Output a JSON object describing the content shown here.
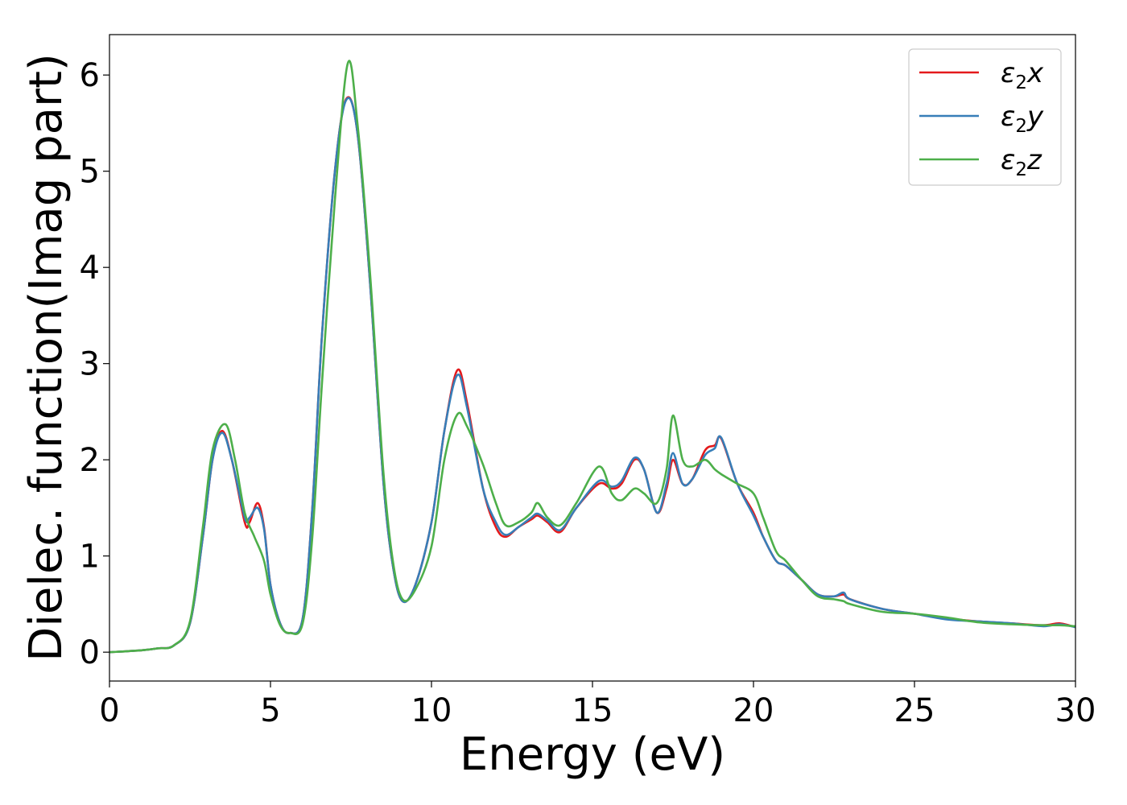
{
  "colors": {
    "x": "#e41a1c",
    "y": "#377eb8",
    "z": "#4daf4a"
  },
  "chart_data": {
    "type": "line",
    "title": "",
    "xlabel": "Energy (eV)",
    "ylabel": "Dielec. function(Imag part)",
    "xlim": [
      0,
      30
    ],
    "ylim": [
      -0.3,
      6.42
    ],
    "xticks": [
      0,
      5,
      10,
      15,
      20,
      25,
      30
    ],
    "xtick_labels": [
      "0",
      "5",
      "10",
      "15",
      "20",
      "25",
      "30"
    ],
    "yticks": [
      0,
      1,
      2,
      3,
      4,
      5,
      6
    ],
    "ytick_labels": [
      "0",
      "1",
      "2",
      "3",
      "4",
      "5",
      "6"
    ],
    "grid": false,
    "legend": "top-right",
    "series": [
      {
        "name": "ε2x",
        "legend_base": "ε",
        "legend_sub": "2",
        "legend_var": "x",
        "color_key": "x",
        "points": [
          [
            0,
            0.0
          ],
          [
            1,
            0.02
          ],
          [
            1.5,
            0.04
          ],
          [
            2,
            0.07
          ],
          [
            2.5,
            0.3
          ],
          [
            2.9,
            1.2
          ],
          [
            3.2,
            2.0
          ],
          [
            3.5,
            2.3
          ],
          [
            3.8,
            2.0
          ],
          [
            4.2,
            1.35
          ],
          [
            4.35,
            1.35
          ],
          [
            4.6,
            1.55
          ],
          [
            4.8,
            1.3
          ],
          [
            5.0,
            0.7
          ],
          [
            5.3,
            0.3
          ],
          [
            5.6,
            0.2
          ],
          [
            6.0,
            0.35
          ],
          [
            6.3,
            1.5
          ],
          [
            6.6,
            3.3
          ],
          [
            7.0,
            5.0
          ],
          [
            7.35,
            5.75
          ],
          [
            7.7,
            5.4
          ],
          [
            8.1,
            3.8
          ],
          [
            8.5,
            1.8
          ],
          [
            8.8,
            0.9
          ],
          [
            9.1,
            0.53
          ],
          [
            9.5,
            0.7
          ],
          [
            10.0,
            1.35
          ],
          [
            10.4,
            2.3
          ],
          [
            10.8,
            2.93
          ],
          [
            11.1,
            2.6
          ],
          [
            11.6,
            1.7
          ],
          [
            12.0,
            1.3
          ],
          [
            12.3,
            1.2
          ],
          [
            12.7,
            1.3
          ],
          [
            13.1,
            1.38
          ],
          [
            13.3,
            1.42
          ],
          [
            13.6,
            1.35
          ],
          [
            14.0,
            1.25
          ],
          [
            14.5,
            1.5
          ],
          [
            15.2,
            1.75
          ],
          [
            15.6,
            1.7
          ],
          [
            15.9,
            1.75
          ],
          [
            16.3,
            2.0
          ],
          [
            16.6,
            1.9
          ],
          [
            17.0,
            1.45
          ],
          [
            17.3,
            1.7
          ],
          [
            17.5,
            2.0
          ],
          [
            17.8,
            1.75
          ],
          [
            18.1,
            1.8
          ],
          [
            18.5,
            2.1
          ],
          [
            18.8,
            2.15
          ],
          [
            19.0,
            2.22
          ],
          [
            19.5,
            1.75
          ],
          [
            20.0,
            1.45
          ],
          [
            20.3,
            1.2
          ],
          [
            20.7,
            0.95
          ],
          [
            21.0,
            0.9
          ],
          [
            21.5,
            0.75
          ],
          [
            22.0,
            0.6
          ],
          [
            22.5,
            0.58
          ],
          [
            22.8,
            0.6
          ],
          [
            23.0,
            0.55
          ],
          [
            24.0,
            0.45
          ],
          [
            25.0,
            0.4
          ],
          [
            26.0,
            0.35
          ],
          [
            27.0,
            0.32
          ],
          [
            28.0,
            0.3
          ],
          [
            29.0,
            0.28
          ],
          [
            29.5,
            0.3
          ],
          [
            30,
            0.26
          ]
        ]
      },
      {
        "name": "ε2y",
        "legend_base": "ε",
        "legend_sub": "2",
        "legend_var": "y",
        "color_key": "y",
        "points": [
          [
            0,
            0.0
          ],
          [
            1,
            0.02
          ],
          [
            1.5,
            0.04
          ],
          [
            2,
            0.07
          ],
          [
            2.5,
            0.3
          ],
          [
            2.9,
            1.2
          ],
          [
            3.2,
            2.0
          ],
          [
            3.5,
            2.28
          ],
          [
            3.8,
            2.0
          ],
          [
            4.2,
            1.4
          ],
          [
            4.35,
            1.4
          ],
          [
            4.6,
            1.5
          ],
          [
            4.8,
            1.28
          ],
          [
            5.0,
            0.7
          ],
          [
            5.3,
            0.3
          ],
          [
            5.6,
            0.2
          ],
          [
            6.0,
            0.35
          ],
          [
            6.3,
            1.5
          ],
          [
            6.6,
            3.3
          ],
          [
            7.0,
            5.0
          ],
          [
            7.35,
            5.74
          ],
          [
            7.7,
            5.4
          ],
          [
            8.1,
            3.8
          ],
          [
            8.5,
            1.8
          ],
          [
            8.8,
            0.9
          ],
          [
            9.1,
            0.53
          ],
          [
            9.5,
            0.7
          ],
          [
            10.0,
            1.35
          ],
          [
            10.4,
            2.3
          ],
          [
            10.8,
            2.88
          ],
          [
            11.1,
            2.55
          ],
          [
            11.6,
            1.7
          ],
          [
            12.0,
            1.35
          ],
          [
            12.3,
            1.22
          ],
          [
            12.7,
            1.3
          ],
          [
            13.1,
            1.4
          ],
          [
            13.3,
            1.44
          ],
          [
            13.6,
            1.37
          ],
          [
            14.0,
            1.27
          ],
          [
            14.5,
            1.5
          ],
          [
            15.2,
            1.78
          ],
          [
            15.6,
            1.72
          ],
          [
            15.9,
            1.78
          ],
          [
            16.3,
            2.02
          ],
          [
            16.6,
            1.9
          ],
          [
            17.0,
            1.45
          ],
          [
            17.3,
            1.75
          ],
          [
            17.5,
            2.07
          ],
          [
            17.8,
            1.75
          ],
          [
            18.1,
            1.8
          ],
          [
            18.5,
            2.05
          ],
          [
            18.8,
            2.12
          ],
          [
            19.0,
            2.23
          ],
          [
            19.5,
            1.75
          ],
          [
            20.0,
            1.42
          ],
          [
            20.3,
            1.2
          ],
          [
            20.7,
            0.95
          ],
          [
            21.0,
            0.9
          ],
          [
            21.5,
            0.75
          ],
          [
            22.0,
            0.6
          ],
          [
            22.5,
            0.58
          ],
          [
            22.8,
            0.62
          ],
          [
            23.0,
            0.55
          ],
          [
            24.0,
            0.45
          ],
          [
            25.0,
            0.4
          ],
          [
            26.0,
            0.34
          ],
          [
            27.0,
            0.32
          ],
          [
            28.0,
            0.3
          ],
          [
            29.0,
            0.27
          ],
          [
            29.5,
            0.29
          ],
          [
            30,
            0.26
          ]
        ]
      },
      {
        "name": "ε2z",
        "legend_base": "ε",
        "legend_sub": "2",
        "legend_var": "z",
        "color_key": "z",
        "points": [
          [
            0,
            0.0
          ],
          [
            1,
            0.02
          ],
          [
            1.5,
            0.04
          ],
          [
            2,
            0.07
          ],
          [
            2.5,
            0.32
          ],
          [
            2.9,
            1.3
          ],
          [
            3.2,
            2.1
          ],
          [
            3.6,
            2.37
          ],
          [
            3.9,
            2.0
          ],
          [
            4.2,
            1.45
          ],
          [
            4.5,
            1.2
          ],
          [
            4.8,
            0.95
          ],
          [
            5.0,
            0.6
          ],
          [
            5.3,
            0.28
          ],
          [
            5.6,
            0.2
          ],
          [
            6.0,
            0.3
          ],
          [
            6.3,
            1.2
          ],
          [
            6.6,
            2.8
          ],
          [
            7.0,
            4.7
          ],
          [
            7.4,
            6.12
          ],
          [
            7.7,
            5.5
          ],
          [
            8.1,
            3.9
          ],
          [
            8.5,
            1.9
          ],
          [
            8.8,
            0.95
          ],
          [
            9.1,
            0.55
          ],
          [
            9.5,
            0.65
          ],
          [
            10.0,
            1.1
          ],
          [
            10.4,
            2.0
          ],
          [
            10.8,
            2.47
          ],
          [
            11.1,
            2.35
          ],
          [
            11.6,
            1.95
          ],
          [
            12.0,
            1.55
          ],
          [
            12.3,
            1.32
          ],
          [
            12.7,
            1.35
          ],
          [
            13.1,
            1.45
          ],
          [
            13.3,
            1.55
          ],
          [
            13.6,
            1.4
          ],
          [
            14.0,
            1.32
          ],
          [
            14.5,
            1.55
          ],
          [
            15.2,
            1.93
          ],
          [
            15.6,
            1.65
          ],
          [
            15.9,
            1.58
          ],
          [
            16.3,
            1.7
          ],
          [
            16.6,
            1.65
          ],
          [
            17.0,
            1.55
          ],
          [
            17.3,
            1.9
          ],
          [
            17.5,
            2.46
          ],
          [
            17.8,
            2.0
          ],
          [
            18.1,
            1.93
          ],
          [
            18.5,
            2.0
          ],
          [
            18.8,
            1.9
          ],
          [
            19.0,
            1.85
          ],
          [
            19.5,
            1.75
          ],
          [
            20.0,
            1.65
          ],
          [
            20.3,
            1.4
          ],
          [
            20.7,
            1.05
          ],
          [
            21.0,
            0.95
          ],
          [
            21.5,
            0.75
          ],
          [
            22.0,
            0.58
          ],
          [
            22.5,
            0.55
          ],
          [
            22.8,
            0.53
          ],
          [
            23.0,
            0.5
          ],
          [
            24.0,
            0.42
          ],
          [
            25.0,
            0.4
          ],
          [
            26.0,
            0.36
          ],
          [
            27.0,
            0.31
          ],
          [
            28.0,
            0.29
          ],
          [
            29.0,
            0.28
          ],
          [
            29.5,
            0.28
          ],
          [
            30,
            0.27
          ]
        ]
      }
    ]
  }
}
